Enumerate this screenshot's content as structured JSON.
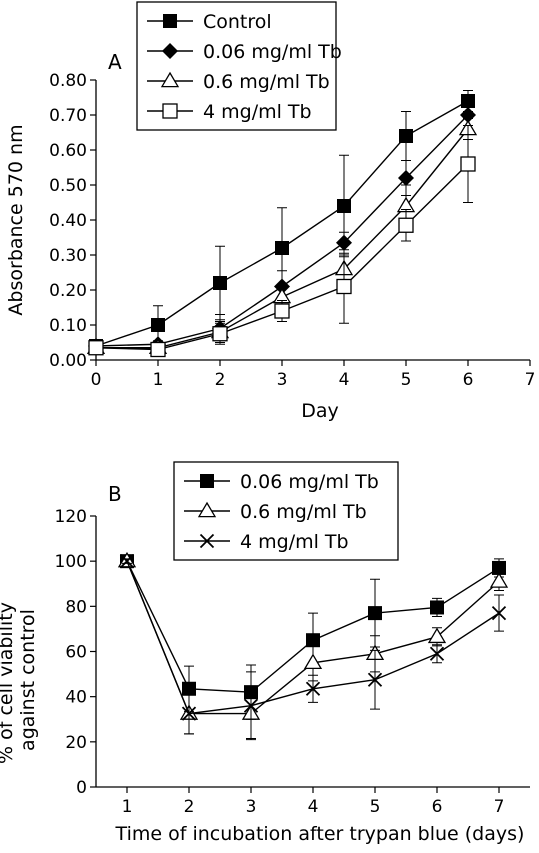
{
  "chart_data": [
    {
      "type": "line",
      "panel_label": "A",
      "xlabel": "Day",
      "ylabel": "Absorbance 570 nm",
      "xlim": [
        0,
        7
      ],
      "ylim": [
        0,
        0.8
      ],
      "xticks": [
        "0",
        "1",
        "2",
        "3",
        "4",
        "5",
        "6",
        "7"
      ],
      "yticks": [
        "0.00",
        "0.10",
        "0.20",
        "0.30",
        "0.40",
        "0.50",
        "0.60",
        "0.70",
        "0.80"
      ],
      "legend_position": "top-center",
      "x": [
        0,
        1,
        2,
        3,
        4,
        5,
        6
      ],
      "series": [
        {
          "name": "Control",
          "marker": "filled-square",
          "values": [
            0.04,
            0.1,
            0.22,
            0.32,
            0.44,
            0.64,
            0.74
          ],
          "errors": [
            0.01,
            0.055,
            0.105,
            0.115,
            0.145,
            0.07,
            0.03
          ]
        },
        {
          "name": "0.06 mg/ml Tb",
          "marker": "filled-diamond",
          "values": [
            0.04,
            0.045,
            0.09,
            0.21,
            0.335,
            0.52,
            0.7
          ],
          "errors": [
            0.01,
            0.01,
            0.04,
            0.045,
            0.03,
            0.05,
            0.03
          ]
        },
        {
          "name": "0.6 mg/ml Tb",
          "marker": "open-triangle",
          "values": [
            0.035,
            0.035,
            0.08,
            0.18,
            0.26,
            0.44,
            0.66
          ],
          "errors": [
            0.01,
            0.01,
            0.03,
            0.03,
            0.04,
            0.06,
            0.03
          ]
        },
        {
          "name": "4 mg/ml Tb",
          "marker": "open-square",
          "values": [
            0.035,
            0.03,
            0.075,
            0.14,
            0.21,
            0.385,
            0.56
          ],
          "errors": [
            0.01,
            0.01,
            0.03,
            0.03,
            0.105,
            0.045,
            0.11
          ]
        }
      ]
    },
    {
      "type": "line",
      "panel_label": "B",
      "xlabel": "Time of incubation after trypan blue (days)",
      "ylabel": "% of cell viability against control",
      "xlim": [
        0.5,
        7.5
      ],
      "ylim": [
        0,
        120
      ],
      "xticks": [
        "1",
        "2",
        "3",
        "4",
        "5",
        "6",
        "7"
      ],
      "yticks": [
        "0",
        "20",
        "40",
        "60",
        "80",
        "100",
        "120"
      ],
      "legend_position": "top-center",
      "x": [
        1,
        2,
        3,
        4,
        5,
        6,
        7
      ],
      "series": [
        {
          "name": "0.06 mg/ml Tb",
          "marker": "filled-square",
          "values": [
            100,
            43.5,
            42,
            65,
            77,
            79.5,
            97
          ],
          "errors": [
            1,
            10,
            12,
            12,
            15,
            4,
            4
          ]
        },
        {
          "name": "0.6 mg/ml Tb",
          "marker": "open-triangle",
          "values": [
            100,
            32.5,
            32.5,
            55,
            59,
            66.5,
            91
          ],
          "errors": [
            1,
            9,
            11,
            8,
            8,
            4,
            4
          ]
        },
        {
          "name": "4 mg/ml Tb",
          "marker": "x",
          "values": [
            100,
            32.5,
            36,
            43.5,
            47.5,
            59,
            77
          ],
          "errors": [
            1,
            9,
            15,
            6,
            13,
            4,
            8
          ]
        }
      ]
    }
  ]
}
